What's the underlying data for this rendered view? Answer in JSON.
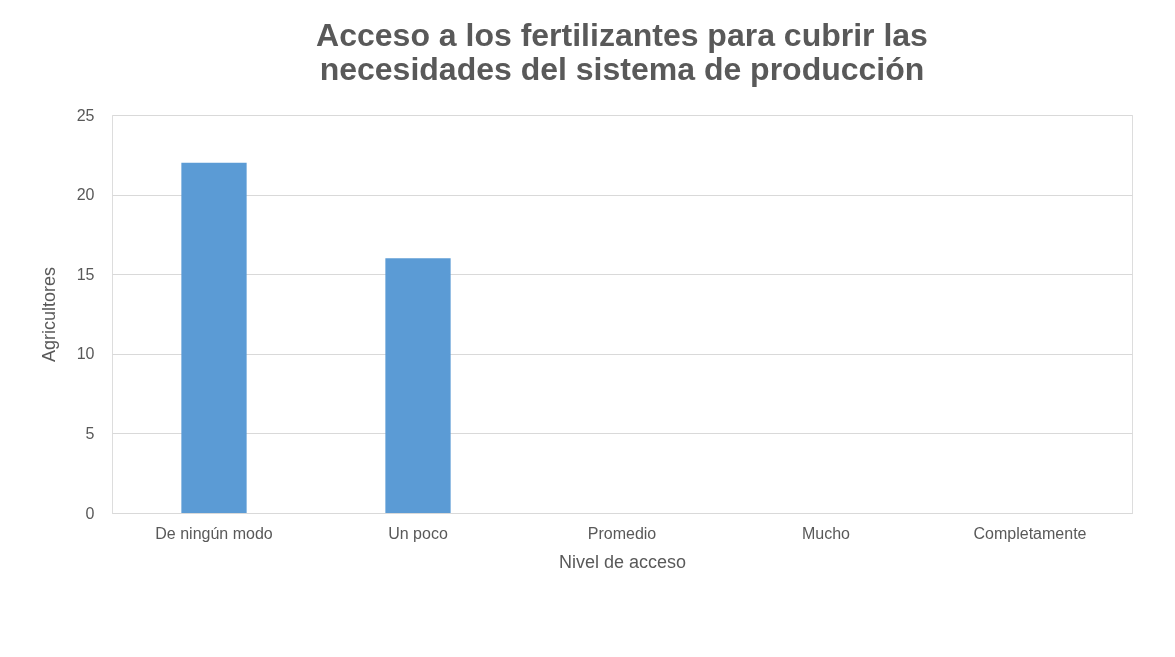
{
  "chart_data": {
    "type": "bar",
    "title": "Acceso a los fertilizantes para cubrir las\nnecesidades del sistema de producción",
    "xlabel": "Nivel de acceso",
    "ylabel": "Agricultores",
    "categories": [
      "De ningún modo",
      "Un poco",
      "Promedio",
      "Mucho",
      "Completamente"
    ],
    "values": [
      22,
      16,
      0,
      0,
      0
    ],
    "color": "#5b9bd5",
    "ylim": [
      0,
      25
    ],
    "yticks": [
      0,
      5,
      10,
      15,
      20,
      25
    ],
    "grid": "y"
  }
}
